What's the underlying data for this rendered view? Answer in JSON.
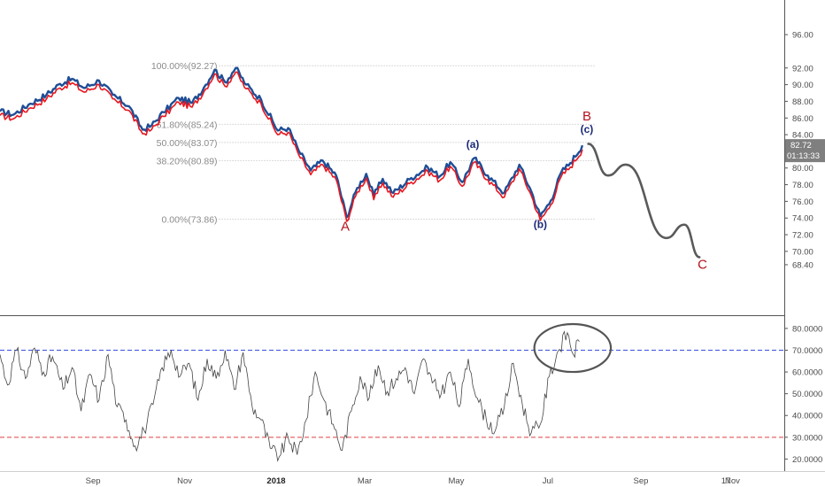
{
  "chart_data": [
    {
      "type": "line",
      "panel": "price",
      "ylim": [
        66.8,
        97.5
      ],
      "y_ticks": [
        "96.00",
        "92.00",
        "90.00",
        "88.00",
        "86.00",
        "84.00",
        "82.00",
        "80.00",
        "78.00",
        "76.00",
        "74.00",
        "72.00",
        "70.00",
        "68.40"
      ],
      "x_ticks": [
        "Sep",
        "Nov",
        "2018",
        "Mar",
        "May",
        "Jul",
        "Sep",
        "Nov",
        "17"
      ],
      "series": [
        {
          "color": "#1f4e96",
          "values": [
            [
              "2017-07-01",
              86.8
            ],
            [
              "2017-07-10",
              86.4
            ],
            [
              "2017-07-20",
              87.6
            ],
            [
              "2017-08-01",
              88.8
            ],
            [
              "2017-08-10",
              90.1
            ],
            [
              "2017-08-18",
              90.7
            ],
            [
              "2017-08-26",
              89.6
            ],
            [
              "2017-09-05",
              90.5
            ],
            [
              "2017-09-14",
              88.8
            ],
            [
              "2017-09-25",
              87.4
            ],
            [
              "2017-10-04",
              84.6
            ],
            [
              "2017-10-10",
              85.1
            ],
            [
              "2017-10-18",
              86.7
            ],
            [
              "2017-10-28",
              88.4
            ],
            [
              "2017-11-06",
              87.8
            ],
            [
              "2017-11-14",
              89.7
            ],
            [
              "2017-11-21",
              91.8
            ],
            [
              "2017-11-28",
              90.3
            ],
            [
              "2017-12-05",
              92.0
            ],
            [
              "2017-12-12",
              90.0
            ],
            [
              "2017-12-22",
              88.2
            ],
            [
              "2018-01-02",
              84.5
            ],
            [
              "2018-01-09",
              84.8
            ],
            [
              "2018-01-16",
              82.1
            ],
            [
              "2018-01-24",
              79.7
            ],
            [
              "2018-02-01",
              80.9
            ],
            [
              "2018-02-10",
              79.1
            ],
            [
              "2018-02-17",
              74.1
            ],
            [
              "2018-02-24",
              77.6
            ],
            [
              "2018-03-02",
              79.3
            ],
            [
              "2018-03-07",
              76.7
            ],
            [
              "2018-03-13",
              78.7
            ],
            [
              "2018-03-20",
              77.0
            ],
            [
              "2018-04-01",
              78.8
            ],
            [
              "2018-04-12",
              80.1
            ],
            [
              "2018-04-20",
              79.0
            ],
            [
              "2018-04-27",
              80.7
            ],
            [
              "2018-05-05",
              78.3
            ],
            [
              "2018-05-13",
              81.2
            ],
            [
              "2018-05-22",
              79.1
            ],
            [
              "2018-06-02",
              77.0
            ],
            [
              "2018-06-12",
              80.4
            ],
            [
              "2018-06-20",
              77.2
            ],
            [
              "2018-06-26",
              74.2
            ],
            [
              "2018-07-03",
              76.1
            ],
            [
              "2018-07-10",
              79.5
            ],
            [
              "2018-07-16",
              80.6
            ],
            [
              "2018-07-24",
              82.72
            ]
          ]
        },
        {
          "color": "#e8171f",
          "values": [
            [
              "2017-07-01",
              86.3
            ],
            [
              "2017-07-10",
              85.9
            ],
            [
              "2017-07-20",
              87.1
            ],
            [
              "2017-08-01",
              88.3
            ],
            [
              "2017-08-10",
              89.6
            ],
            [
              "2017-08-18",
              90.2
            ],
            [
              "2017-08-26",
              89.1
            ],
            [
              "2017-09-05",
              90.0
            ],
            [
              "2017-09-14",
              88.3
            ],
            [
              "2017-09-25",
              86.9
            ],
            [
              "2017-10-04",
              84.1
            ],
            [
              "2017-10-10",
              84.6
            ],
            [
              "2017-10-18",
              86.2
            ],
            [
              "2017-10-28",
              87.9
            ],
            [
              "2017-11-06",
              87.3
            ],
            [
              "2017-11-14",
              89.2
            ],
            [
              "2017-11-21",
              91.3
            ],
            [
              "2017-11-28",
              89.8
            ],
            [
              "2017-12-05",
              91.5
            ],
            [
              "2017-12-12",
              89.5
            ],
            [
              "2017-12-22",
              87.7
            ],
            [
              "2018-01-02",
              84.0
            ],
            [
              "2018-01-09",
              84.3
            ],
            [
              "2018-01-16",
              81.6
            ],
            [
              "2018-01-24",
              79.2
            ],
            [
              "2018-02-01",
              80.4
            ],
            [
              "2018-02-10",
              78.6
            ],
            [
              "2018-02-17",
              73.6
            ],
            [
              "2018-02-24",
              77.1
            ],
            [
              "2018-03-02",
              78.8
            ],
            [
              "2018-03-07",
              76.2
            ],
            [
              "2018-03-13",
              78.2
            ],
            [
              "2018-03-20",
              76.5
            ],
            [
              "2018-04-01",
              78.3
            ],
            [
              "2018-04-12",
              79.6
            ],
            [
              "2018-04-20",
              78.5
            ],
            [
              "2018-04-27",
              80.2
            ],
            [
              "2018-05-05",
              77.8
            ],
            [
              "2018-05-13",
              80.7
            ],
            [
              "2018-05-22",
              78.6
            ],
            [
              "2018-06-02",
              76.5
            ],
            [
              "2018-06-12",
              79.9
            ],
            [
              "2018-06-20",
              76.7
            ],
            [
              "2018-06-26",
              73.7
            ],
            [
              "2018-07-03",
              75.6
            ],
            [
              "2018-07-10",
              79.0
            ],
            [
              "2018-07-16",
              80.1
            ],
            [
              "2018-07-24",
              82.2
            ]
          ]
        },
        {
          "color": "#5a5a5a",
          "values": [
            [
              "2018-07-28",
              82.9
            ],
            [
              "2018-08-10",
              79.1
            ],
            [
              "2018-08-22",
              80.4
            ],
            [
              "2018-09-18",
              71.6
            ],
            [
              "2018-09-30",
              73.2
            ],
            [
              "2018-10-10",
              69.3
            ]
          ]
        }
      ],
      "fib_levels": [
        {
          "label": "100.00%(92.27)",
          "value": 92.27
        },
        {
          "label": "61.80%(85.24)",
          "value": 85.24
        },
        {
          "label": "50.00%(83.07)",
          "value": 83.07
        },
        {
          "label": "38.20%(80.89)",
          "value": 80.89
        },
        {
          "label": "0.00%(73.86)",
          "value": 73.86
        }
      ],
      "wave_labels": [
        {
          "text": "A",
          "kind": "major",
          "x": "2018-02-16",
          "y": 72.5
        },
        {
          "text": "B",
          "kind": "major",
          "x": "2018-07-27",
          "y": 85.7
        },
        {
          "text": "C",
          "kind": "major",
          "x": "2018-10-12",
          "y": 67.9
        },
        {
          "text": "(a)",
          "kind": "minor",
          "x": "2018-05-12",
          "y": 82.4
        },
        {
          "text": "(b)",
          "kind": "minor",
          "x": "2018-06-26",
          "y": 72.8
        },
        {
          "text": "(c)",
          "kind": "minor",
          "x": "2018-07-27",
          "y": 84.2
        }
      ],
      "last_price": {
        "value": "82.72",
        "time": "01:13:33",
        "color": "#7f7f7f"
      }
    },
    {
      "type": "line",
      "panel": "oscillator",
      "ylim": [
        16.5,
        82
      ],
      "y_ticks": [
        "80.0000",
        "70.0000",
        "60.0000",
        "50.0000",
        "40.0000",
        "30.0000",
        "20.0000"
      ],
      "reference_lines": [
        {
          "value": 70,
          "color": "#3a4fe0"
        },
        {
          "value": 30,
          "color": "#e04040"
        }
      ],
      "series": [
        {
          "color": "#444444",
          "values": [
            [
              "2017-07-01",
              68
            ],
            [
              "2017-07-06",
              54
            ],
            [
              "2017-07-12",
              70
            ],
            [
              "2017-07-18",
              57
            ],
            [
              "2017-07-24",
              71
            ],
            [
              "2017-07-30",
              60
            ],
            [
              "2017-08-05",
              67
            ],
            [
              "2017-08-12",
              52
            ],
            [
              "2017-08-18",
              62
            ],
            [
              "2017-08-24",
              42
            ],
            [
              "2017-08-30",
              59
            ],
            [
              "2017-09-05",
              47
            ],
            [
              "2017-09-11",
              68
            ],
            [
              "2017-09-17",
              44
            ],
            [
              "2017-09-23",
              38
            ],
            [
              "2017-09-29",
              26
            ],
            [
              "2017-10-05",
              33
            ],
            [
              "2017-10-11",
              45
            ],
            [
              "2017-10-17",
              62
            ],
            [
              "2017-10-23",
              70
            ],
            [
              "2017-10-29",
              58
            ],
            [
              "2017-11-04",
              64
            ],
            [
              "2017-11-10",
              47
            ],
            [
              "2017-11-16",
              66
            ],
            [
              "2017-11-22",
              57
            ],
            [
              "2017-11-28",
              70
            ],
            [
              "2017-12-04",
              52
            ],
            [
              "2017-12-10",
              69
            ],
            [
              "2017-12-16",
              44
            ],
            [
              "2017-12-22",
              38
            ],
            [
              "2017-12-28",
              25
            ],
            [
              "2018-01-03",
              21
            ],
            [
              "2018-01-09",
              30
            ],
            [
              "2018-01-15",
              22
            ],
            [
              "2018-01-21",
              38
            ],
            [
              "2018-01-27",
              60
            ],
            [
              "2018-02-02",
              47
            ],
            [
              "2018-02-08",
              36
            ],
            [
              "2018-02-14",
              24
            ],
            [
              "2018-02-20",
              42
            ],
            [
              "2018-02-26",
              58
            ],
            [
              "2018-03-04",
              48
            ],
            [
              "2018-03-10",
              63
            ],
            [
              "2018-03-16",
              51
            ],
            [
              "2018-03-22",
              57
            ],
            [
              "2018-03-28",
              62
            ],
            [
              "2018-04-03",
              50
            ],
            [
              "2018-04-09",
              66
            ],
            [
              "2018-04-15",
              55
            ],
            [
              "2018-04-21",
              50
            ],
            [
              "2018-04-27",
              60
            ],
            [
              "2018-05-03",
              44
            ],
            [
              "2018-05-09",
              66
            ],
            [
              "2018-05-15",
              48
            ],
            [
              "2018-05-21",
              38
            ],
            [
              "2018-05-27",
              33
            ],
            [
              "2018-06-02",
              44
            ],
            [
              "2018-06-08",
              64
            ],
            [
              "2018-06-14",
              45
            ],
            [
              "2018-06-20",
              32
            ],
            [
              "2018-06-26",
              36
            ],
            [
              "2018-07-02",
              58
            ],
            [
              "2018-07-08",
              70
            ],
            [
              "2018-07-14",
              78
            ],
            [
              "2018-07-18",
              68
            ],
            [
              "2018-07-22",
              74
            ]
          ]
        }
      ],
      "annotations": [
        {
          "shape": "ellipse",
          "color": "#555555",
          "x_range": [
            "2018-06-22",
            "2018-08-12"
          ],
          "y_range": [
            60,
            82
          ]
        }
      ]
    }
  ]
}
